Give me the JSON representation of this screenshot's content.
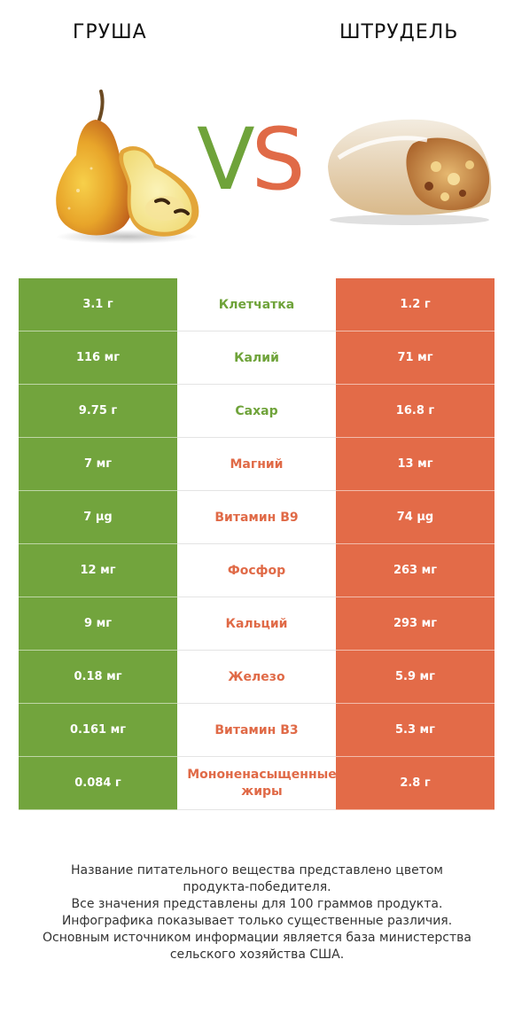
{
  "header": {
    "left_title": "ГРУША",
    "right_title": "ШТРУДЕЛЬ",
    "vs_v": "V",
    "vs_s": "S"
  },
  "colors": {
    "winner_left": "#72a43d",
    "winner_right": "#e36b48"
  },
  "rows": [
    {
      "left": "3.1 г",
      "nutrient": "Клетчатка",
      "right": "1.2 г",
      "winner": "left"
    },
    {
      "left": "116 мг",
      "nutrient": "Калий",
      "right": "71 мг",
      "winner": "left"
    },
    {
      "left": "9.75 г",
      "nutrient": "Сахар",
      "right": "16.8 г",
      "winner": "left"
    },
    {
      "left": "7 мг",
      "nutrient": "Магний",
      "right": "13 мг",
      "winner": "right"
    },
    {
      "left": "7 µg",
      "nutrient": "Витамин B9",
      "right": "74 µg",
      "winner": "right"
    },
    {
      "left": "12 мг",
      "nutrient": "Фосфор",
      "right": "263 мг",
      "winner": "right"
    },
    {
      "left": "9 мг",
      "nutrient": "Кальций",
      "right": "293 мг",
      "winner": "right"
    },
    {
      "left": "0.18 мг",
      "nutrient": "Железо",
      "right": "5.9 мг",
      "winner": "right"
    },
    {
      "left": "0.161 мг",
      "nutrient": "Витамин B3",
      "right": "5.3 мг",
      "winner": "right"
    },
    {
      "left": "0.084 г",
      "nutrient": "Мононенасыщенные жиры",
      "right": "2.8 г",
      "winner": "right"
    }
  ],
  "footer": {
    "line1": "Название питательного вещества представлено цветом",
    "line2": "продукта-победителя.",
    "line3": "Все значения представлены для 100 граммов продукта.",
    "line4": "Инфографика показывает только существенные различия.",
    "line5": "Основным источником информации является база министерства",
    "line6": "сельского хозяйства США."
  }
}
